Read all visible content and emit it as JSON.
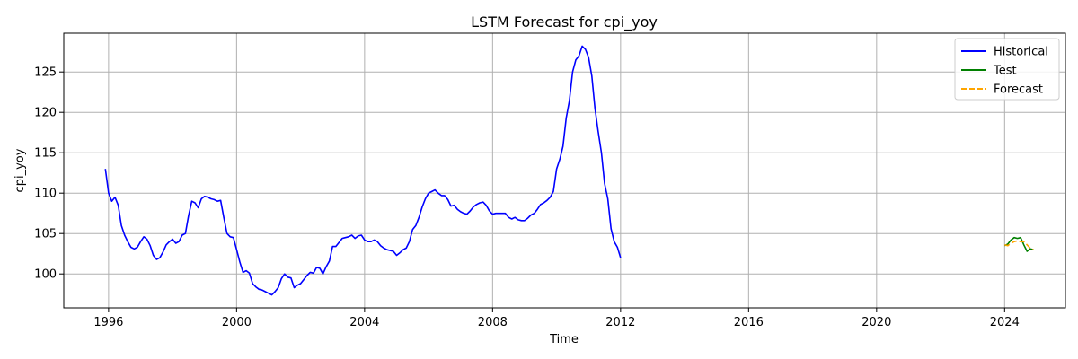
{
  "chart_data": {
    "type": "line",
    "title": "LSTM Forecast for cpi_yoy",
    "xlabel": "Time",
    "ylabel": "cpi_yoy",
    "xlim": [
      1994.6,
      2025.9
    ],
    "ylim": [
      95.8,
      129.8
    ],
    "x_ticks": [
      1996,
      2000,
      2004,
      2008,
      2012,
      2016,
      2020,
      2024
    ],
    "y_ticks": [
      100,
      105,
      110,
      115,
      120,
      125
    ],
    "grid": true,
    "legend_position": "top-right",
    "series": [
      {
        "name": "Historical",
        "color": "#0000ff",
        "style": "solid",
        "points": [
          [
            1995.9,
            113.0
          ],
          [
            1996.0,
            110.0
          ],
          [
            1996.1,
            109.0
          ],
          [
            1996.2,
            109.5
          ],
          [
            1996.3,
            108.5
          ],
          [
            1996.4,
            106.0
          ],
          [
            1996.5,
            104.8
          ],
          [
            1996.6,
            104.0
          ],
          [
            1996.7,
            103.3
          ],
          [
            1996.8,
            103.1
          ],
          [
            1996.9,
            103.3
          ],
          [
            1997.0,
            104.0
          ],
          [
            1997.1,
            104.6
          ],
          [
            1997.2,
            104.3
          ],
          [
            1997.3,
            103.5
          ],
          [
            1997.4,
            102.3
          ],
          [
            1997.5,
            101.8
          ],
          [
            1997.6,
            102.0
          ],
          [
            1997.7,
            102.7
          ],
          [
            1997.8,
            103.6
          ],
          [
            1997.9,
            104.0
          ],
          [
            1998.0,
            104.3
          ],
          [
            1998.1,
            103.8
          ],
          [
            1998.2,
            104.0
          ],
          [
            1998.3,
            104.8
          ],
          [
            1998.4,
            105.0
          ],
          [
            1998.5,
            107.2
          ],
          [
            1998.6,
            109.0
          ],
          [
            1998.7,
            108.8
          ],
          [
            1998.8,
            108.2
          ],
          [
            1998.9,
            109.3
          ],
          [
            1999.0,
            109.6
          ],
          [
            1999.1,
            109.5
          ],
          [
            1999.2,
            109.3
          ],
          [
            1999.3,
            109.2
          ],
          [
            1999.4,
            109.0
          ],
          [
            1999.5,
            109.1
          ],
          [
            1999.6,
            107.0
          ],
          [
            1999.7,
            105.0
          ],
          [
            1999.8,
            104.6
          ],
          [
            1999.9,
            104.5
          ],
          [
            2000.0,
            103.0
          ],
          [
            2000.1,
            101.5
          ],
          [
            2000.2,
            100.2
          ],
          [
            2000.3,
            100.4
          ],
          [
            2000.4,
            100.1
          ],
          [
            2000.5,
            98.8
          ],
          [
            2000.6,
            98.4
          ],
          [
            2000.7,
            98.1
          ],
          [
            2000.8,
            98.0
          ],
          [
            2000.9,
            97.8
          ],
          [
            2001.0,
            97.6
          ],
          [
            2001.1,
            97.4
          ],
          [
            2001.2,
            97.8
          ],
          [
            2001.3,
            98.3
          ],
          [
            2001.4,
            99.4
          ],
          [
            2001.5,
            100.0
          ],
          [
            2001.6,
            99.6
          ],
          [
            2001.7,
            99.5
          ],
          [
            2001.8,
            98.3
          ],
          [
            2001.9,
            98.6
          ],
          [
            2002.0,
            98.8
          ],
          [
            2002.1,
            99.3
          ],
          [
            2002.2,
            99.8
          ],
          [
            2002.3,
            100.2
          ],
          [
            2002.4,
            100.1
          ],
          [
            2002.5,
            100.8
          ],
          [
            2002.6,
            100.7
          ],
          [
            2002.7,
            100.0
          ],
          [
            2002.8,
            100.9
          ],
          [
            2002.9,
            101.6
          ],
          [
            2003.0,
            103.4
          ],
          [
            2003.1,
            103.4
          ],
          [
            2003.2,
            103.9
          ],
          [
            2003.3,
            104.4
          ],
          [
            2003.4,
            104.5
          ],
          [
            2003.5,
            104.6
          ],
          [
            2003.6,
            104.8
          ],
          [
            2003.7,
            104.4
          ],
          [
            2003.8,
            104.7
          ],
          [
            2003.9,
            104.8
          ],
          [
            2004.0,
            104.2
          ],
          [
            2004.1,
            104.0
          ],
          [
            2004.2,
            104.0
          ],
          [
            2004.3,
            104.2
          ],
          [
            2004.4,
            104.0
          ],
          [
            2004.5,
            103.5
          ],
          [
            2004.6,
            103.2
          ],
          [
            2004.7,
            103.0
          ],
          [
            2004.8,
            102.9
          ],
          [
            2004.9,
            102.8
          ],
          [
            2005.0,
            102.3
          ],
          [
            2005.1,
            102.6
          ],
          [
            2005.2,
            103.0
          ],
          [
            2005.3,
            103.2
          ],
          [
            2005.4,
            104.0
          ],
          [
            2005.5,
            105.5
          ],
          [
            2005.6,
            106.0
          ],
          [
            2005.7,
            107.0
          ],
          [
            2005.8,
            108.3
          ],
          [
            2005.9,
            109.3
          ],
          [
            2006.0,
            110.0
          ],
          [
            2006.1,
            110.2
          ],
          [
            2006.2,
            110.4
          ],
          [
            2006.3,
            110.0
          ],
          [
            2006.4,
            109.7
          ],
          [
            2006.5,
            109.7
          ],
          [
            2006.6,
            109.2
          ],
          [
            2006.7,
            108.4
          ],
          [
            2006.8,
            108.5
          ],
          [
            2006.9,
            108.0
          ],
          [
            2007.0,
            107.7
          ],
          [
            2007.1,
            107.5
          ],
          [
            2007.2,
            107.4
          ],
          [
            2007.3,
            107.8
          ],
          [
            2007.4,
            108.3
          ],
          [
            2007.5,
            108.6
          ],
          [
            2007.6,
            108.8
          ],
          [
            2007.7,
            108.9
          ],
          [
            2007.8,
            108.5
          ],
          [
            2007.9,
            107.8
          ],
          [
            2008.0,
            107.4
          ],
          [
            2008.1,
            107.5
          ],
          [
            2008.2,
            107.5
          ],
          [
            2008.3,
            107.5
          ],
          [
            2008.4,
            107.5
          ],
          [
            2008.5,
            107.0
          ],
          [
            2008.6,
            106.8
          ],
          [
            2008.7,
            107.0
          ],
          [
            2008.8,
            106.7
          ],
          [
            2008.9,
            106.6
          ],
          [
            2009.0,
            106.6
          ],
          [
            2009.1,
            106.9
          ],
          [
            2009.2,
            107.3
          ],
          [
            2009.3,
            107.5
          ],
          [
            2009.4,
            108.0
          ],
          [
            2009.5,
            108.6
          ],
          [
            2009.6,
            108.8
          ],
          [
            2009.7,
            109.1
          ],
          [
            2009.8,
            109.5
          ],
          [
            2009.9,
            110.2
          ],
          [
            2010.0,
            113.0
          ],
          [
            2010.1,
            114.2
          ],
          [
            2010.2,
            115.8
          ],
          [
            2010.3,
            119.3
          ],
          [
            2010.4,
            121.4
          ],
          [
            2010.5,
            125.0
          ],
          [
            2010.6,
            126.5
          ],
          [
            2010.7,
            127.0
          ],
          [
            2010.8,
            128.2
          ],
          [
            2010.9,
            127.8
          ],
          [
            2011.0,
            126.8
          ],
          [
            2011.1,
            124.5
          ],
          [
            2011.2,
            120.5
          ],
          [
            2011.3,
            117.6
          ],
          [
            2011.4,
            115.0
          ],
          [
            2011.5,
            111.2
          ],
          [
            2011.6,
            109.3
          ],
          [
            2011.7,
            105.6
          ],
          [
            2011.8,
            104.0
          ],
          [
            2011.9,
            103.3
          ],
          [
            2012.0,
            102.0
          ]
        ]
      },
      {
        "name": "Test",
        "color": "#008000",
        "style": "solid",
        "points": [
          [
            2024.0,
            103.5
          ],
          [
            2024.1,
            103.7
          ],
          [
            2024.2,
            104.2
          ],
          [
            2024.3,
            104.5
          ],
          [
            2024.4,
            104.4
          ],
          [
            2024.5,
            104.5
          ],
          [
            2024.6,
            103.6
          ],
          [
            2024.7,
            102.8
          ],
          [
            2024.8,
            103.1
          ],
          [
            2024.9,
            103.0
          ]
        ]
      },
      {
        "name": "Forecast",
        "color": "#ffa500",
        "style": "dashed",
        "points": [
          [
            2024.0,
            103.6
          ],
          [
            2024.1,
            103.5
          ],
          [
            2024.2,
            103.8
          ],
          [
            2024.3,
            104.0
          ],
          [
            2024.4,
            104.1
          ],
          [
            2024.5,
            104.0
          ],
          [
            2024.6,
            104.0
          ],
          [
            2024.7,
            103.6
          ],
          [
            2024.8,
            103.2
          ],
          [
            2024.9,
            103.0
          ]
        ]
      }
    ]
  }
}
